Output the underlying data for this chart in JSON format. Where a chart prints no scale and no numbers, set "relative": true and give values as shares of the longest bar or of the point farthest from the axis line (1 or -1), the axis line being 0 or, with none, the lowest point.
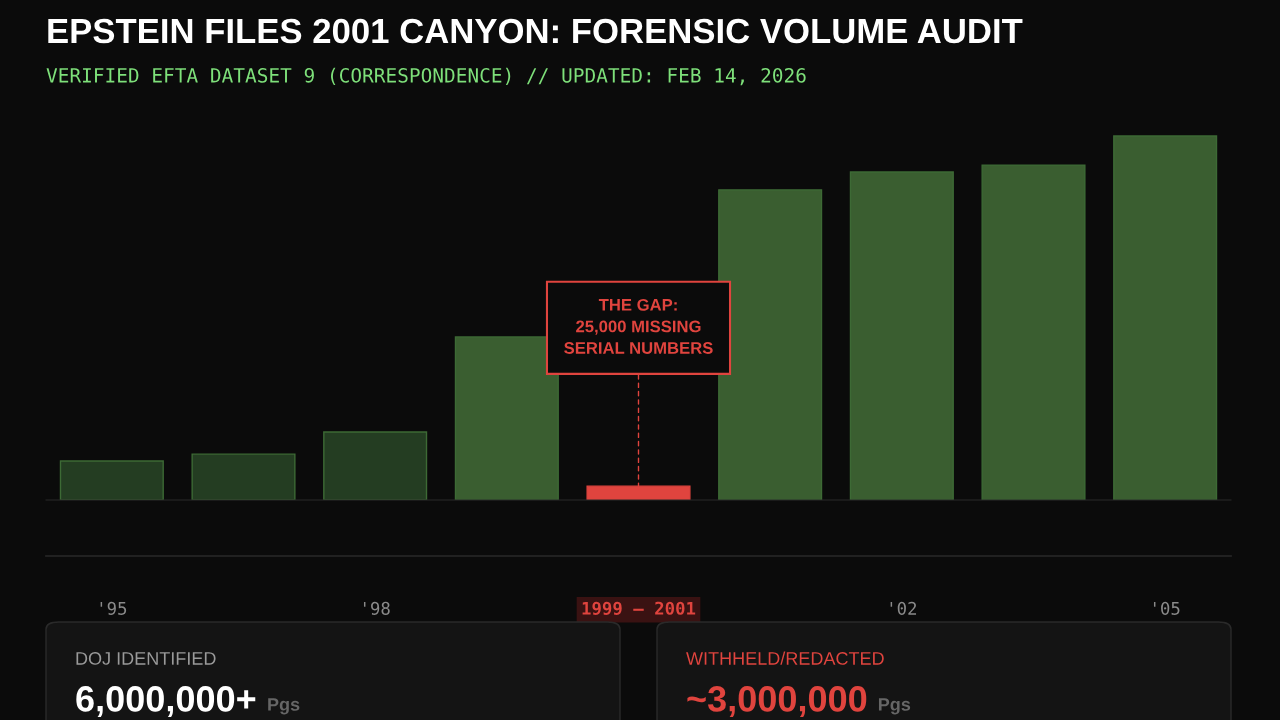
{
  "chart_data": {
    "type": "bar",
    "title": "EPSTEIN FILES 2001 CANYON: FORENSIC VOLUME AUDIT",
    "subtitle": "VERIFIED EFTA DATASET 9 (CORRESPONDENCE) // UPDATED: FEB 14, 2026",
    "relative": true,
    "categories": [
      "'95",
      null,
      "'98",
      null,
      "1999 – 2001",
      null,
      "'02",
      null,
      "'05"
    ],
    "values": [
      0.107,
      0.126,
      0.187,
      0.448,
      0.038,
      0.852,
      0.901,
      0.92,
      1.0
    ],
    "colors": [
      "#243d22",
      "#243d22",
      "#243d22",
      "#3a5e30",
      "#e0443e",
      "#3a5e30",
      "#3a5e30",
      "#3a5e30",
      "#3a5e30"
    ],
    "annotations": [
      {
        "text": "THE GAP:\n25,000 MISSING\nSERIAL NUMBERS",
        "x": "1999 – 2001",
        "y": 0.038
      },
      "DOJ IDENTIFIED",
      "6,000,000+",
      "Pgs",
      "WITHHELD/REDACTED",
      "~3,000,000",
      "Pgs"
    ],
    "grid": false,
    "legend": false
  }
}
